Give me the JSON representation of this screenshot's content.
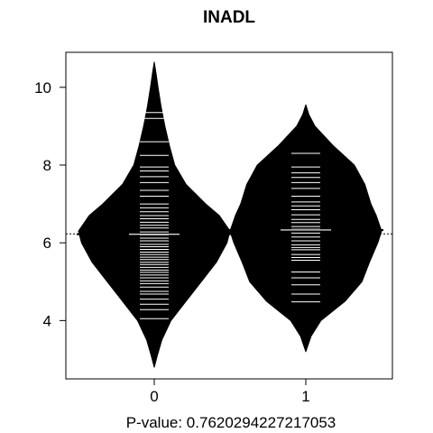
{
  "chart_data": {
    "type": "beanplot",
    "title": "INADL",
    "xlabel": "P-value: 0.7620294227217053",
    "ylabel": "",
    "categories": [
      "0",
      "1"
    ],
    "ylim": [
      2.5,
      10.9
    ],
    "yticks": [
      4,
      6,
      8,
      10
    ],
    "overall_mean": 6.23,
    "fill_color": "#000000",
    "line_color": "#ffffff",
    "groups": [
      {
        "name": "0",
        "mean": 6.22,
        "density": [
          {
            "y": 2.8,
            "w": 0.0
          },
          {
            "y": 3.1,
            "w": 0.04
          },
          {
            "y": 3.5,
            "w": 0.1
          },
          {
            "y": 4.0,
            "w": 0.22
          },
          {
            "y": 4.5,
            "w": 0.42
          },
          {
            "y": 5.0,
            "w": 0.62
          },
          {
            "y": 5.5,
            "w": 0.82
          },
          {
            "y": 6.0,
            "w": 0.96
          },
          {
            "y": 6.3,
            "w": 1.0
          },
          {
            "y": 6.7,
            "w": 0.86
          },
          {
            "y": 7.0,
            "w": 0.68
          },
          {
            "y": 7.5,
            "w": 0.42
          },
          {
            "y": 8.0,
            "w": 0.27
          },
          {
            "y": 8.5,
            "w": 0.2
          },
          {
            "y": 9.0,
            "w": 0.14
          },
          {
            "y": 9.5,
            "w": 0.09
          },
          {
            "y": 10.0,
            "w": 0.05
          },
          {
            "y": 10.4,
            "w": 0.02
          },
          {
            "y": 10.65,
            "w": 0.0
          }
        ],
        "observations": [
          4.05,
          4.28,
          4.42,
          4.55,
          4.68,
          4.75,
          4.86,
          4.95,
          5.02,
          5.1,
          5.17,
          5.24,
          5.3,
          5.37,
          5.44,
          5.5,
          5.57,
          5.63,
          5.7,
          5.76,
          5.83,
          5.9,
          5.96,
          6.05,
          6.12,
          6.2,
          6.28,
          6.38,
          6.45,
          6.53,
          6.62,
          6.7,
          6.8,
          6.9,
          7.0,
          7.2,
          7.35,
          7.55,
          7.7,
          7.85,
          7.95,
          8.25,
          8.6,
          9.2,
          9.35
        ]
      },
      {
        "name": "1",
        "mean": 6.33,
        "density": [
          {
            "y": 3.2,
            "w": 0.0
          },
          {
            "y": 3.6,
            "w": 0.07
          },
          {
            "y": 4.0,
            "w": 0.2
          },
          {
            "y": 4.5,
            "w": 0.52
          },
          {
            "y": 5.0,
            "w": 0.74
          },
          {
            "y": 5.5,
            "w": 0.84
          },
          {
            "y": 6.0,
            "w": 0.95
          },
          {
            "y": 6.3,
            "w": 1.0
          },
          {
            "y": 6.7,
            "w": 0.93
          },
          {
            "y": 7.0,
            "w": 0.86
          },
          {
            "y": 7.5,
            "w": 0.78
          },
          {
            "y": 8.0,
            "w": 0.64
          },
          {
            "y": 8.5,
            "w": 0.36
          },
          {
            "y": 9.0,
            "w": 0.12
          },
          {
            "y": 9.3,
            "w": 0.04
          },
          {
            "y": 9.55,
            "w": 0.0
          }
        ],
        "observations": [
          4.48,
          4.68,
          4.92,
          5.1,
          5.25,
          5.55,
          5.62,
          5.7,
          5.82,
          5.88,
          5.95,
          6.05,
          6.15,
          6.25,
          6.35,
          6.42,
          6.52,
          6.6,
          6.72,
          6.85,
          6.95,
          7.05,
          7.2,
          7.4,
          7.55,
          7.68,
          7.8,
          7.95,
          8.3
        ]
      }
    ]
  }
}
